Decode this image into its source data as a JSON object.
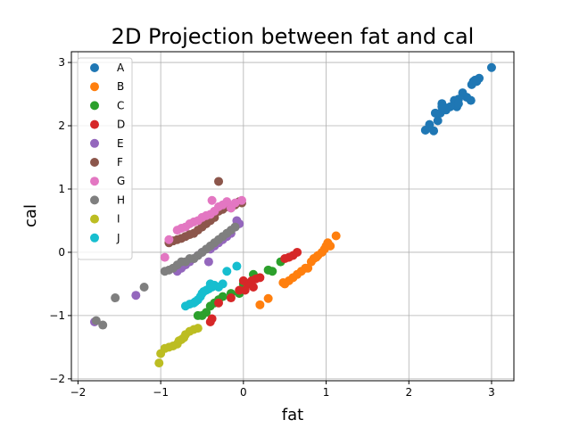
{
  "chart_data": {
    "type": "scatter",
    "title": "2D Projection between fat and cal",
    "xlabel": "fat",
    "ylabel": "cal",
    "xlim": [
      -2.08,
      3.27
    ],
    "ylim": [
      -2.03,
      3.17
    ],
    "xticks": [
      -2,
      -1,
      0,
      1,
      2,
      3
    ],
    "yticks": [
      -2,
      -1,
      0,
      1,
      2,
      3
    ],
    "grid": true,
    "legend_position": "top-left",
    "series": [
      {
        "name": "A",
        "color": "#1f77b4",
        "x": [
          3.0,
          2.85,
          2.8,
          2.78,
          2.76,
          2.82,
          2.75,
          2.7,
          2.65,
          2.6,
          2.58,
          2.55,
          2.5,
          2.45,
          2.42,
          2.4,
          2.38,
          2.35,
          2.32,
          2.3,
          2.25,
          2.2,
          2.4,
          2.6
        ],
        "y": [
          2.92,
          2.75,
          2.72,
          2.7,
          2.65,
          2.7,
          2.4,
          2.45,
          2.52,
          2.42,
          2.3,
          2.4,
          2.3,
          2.25,
          2.3,
          2.35,
          2.2,
          2.08,
          2.2,
          1.92,
          2.02,
          1.93,
          2.3,
          2.35
        ]
      },
      {
        "name": "B",
        "color": "#ff7f0e",
        "x": [
          1.12,
          1.05,
          1.02,
          0.98,
          0.95,
          0.9,
          0.85,
          0.82,
          0.78,
          0.75,
          0.65,
          0.6,
          0.55,
          0.5,
          0.48,
          0.3,
          0.2,
          1.0,
          0.88,
          0.7
        ],
        "y": [
          0.26,
          0.1,
          0.15,
          0.05,
          0.0,
          -0.05,
          -0.1,
          -0.15,
          -0.25,
          -0.25,
          -0.35,
          -0.4,
          -0.45,
          -0.5,
          -0.48,
          -0.73,
          -0.83,
          0.1,
          -0.08,
          -0.3
        ]
      },
      {
        "name": "C",
        "color": "#2ca02c",
        "x": [
          0.45,
          0.35,
          0.12,
          0.0,
          -0.05,
          -0.15,
          -0.25,
          -0.35,
          -0.4,
          -0.45,
          -0.5,
          -0.55,
          0.3,
          -0.3
        ],
        "y": [
          -0.15,
          -0.3,
          -0.35,
          -0.5,
          -0.65,
          -0.65,
          -0.7,
          -0.8,
          -0.85,
          -0.95,
          -1.0,
          -1.0,
          -0.28,
          -0.75
        ]
      },
      {
        "name": "D",
        "color": "#d62728",
        "x": [
          0.65,
          0.6,
          0.55,
          0.5,
          0.2,
          0.15,
          0.1,
          0.05,
          0.0,
          -0.05,
          -0.15,
          -0.3,
          -0.38,
          -0.4,
          0.12,
          0.02
        ],
        "y": [
          0.0,
          -0.05,
          -0.08,
          -0.1,
          -0.4,
          -0.42,
          -0.45,
          -0.5,
          -0.45,
          -0.6,
          -0.72,
          -0.8,
          -1.05,
          -1.1,
          -0.55,
          -0.6
        ]
      },
      {
        "name": "E",
        "color": "#9467bd",
        "x": [
          -0.05,
          -0.08,
          -0.1,
          -0.15,
          -0.2,
          -0.25,
          -0.3,
          -0.35,
          -0.4,
          -0.5,
          -0.55,
          -0.6,
          -0.65,
          -0.7,
          -0.75,
          -0.8,
          -1.3,
          -1.8,
          -0.42
        ],
        "y": [
          0.45,
          0.5,
          0.4,
          0.3,
          0.25,
          0.2,
          0.15,
          0.1,
          0.05,
          0.0,
          -0.05,
          -0.1,
          -0.15,
          -0.2,
          -0.25,
          -0.3,
          -0.68,
          -1.1,
          -0.15
        ]
      },
      {
        "name": "F",
        "color": "#8c564b",
        "x": [
          -0.3,
          -0.02,
          -0.05,
          -0.1,
          -0.15,
          -0.2,
          -0.25,
          -0.3,
          -0.35,
          -0.4,
          -0.45,
          -0.5,
          -0.55,
          -0.6,
          -0.65,
          -0.7,
          -0.75,
          -0.8,
          -0.85,
          -0.9
        ],
        "y": [
          1.12,
          0.78,
          0.8,
          0.75,
          0.7,
          0.72,
          0.68,
          0.65,
          0.55,
          0.5,
          0.45,
          0.4,
          0.35,
          0.3,
          0.28,
          0.25,
          0.22,
          0.2,
          0.18,
          0.15
        ]
      },
      {
        "name": "G",
        "color": "#e377c2",
        "x": [
          -0.02,
          -0.1,
          -0.15,
          -0.2,
          -0.25,
          -0.3,
          -0.35,
          -0.4,
          -0.45,
          -0.5,
          -0.55,
          -0.6,
          -0.65,
          -0.7,
          -0.75,
          -0.8,
          -0.9,
          -0.95,
          -0.38
        ],
        "y": [
          0.82,
          0.78,
          0.7,
          0.8,
          0.75,
          0.72,
          0.65,
          0.6,
          0.58,
          0.55,
          0.5,
          0.48,
          0.45,
          0.4,
          0.38,
          0.35,
          0.2,
          -0.08,
          0.82
        ]
      },
      {
        "name": "H",
        "color": "#7f7f7f",
        "x": [
          -0.1,
          -0.15,
          -0.2,
          -0.25,
          -0.3,
          -0.35,
          -0.4,
          -0.45,
          -0.5,
          -0.55,
          -0.6,
          -0.65,
          -0.7,
          -0.75,
          -0.8,
          -0.85,
          -0.9,
          -0.95,
          -1.2,
          -1.55,
          -1.7,
          -1.78
        ],
        "y": [
          0.4,
          0.35,
          0.3,
          0.25,
          0.2,
          0.15,
          0.1,
          0.05,
          0.0,
          -0.05,
          -0.1,
          -0.1,
          -0.15,
          -0.15,
          -0.2,
          -0.25,
          -0.28,
          -0.3,
          -0.55,
          -0.72,
          -1.15,
          -1.08
        ]
      },
      {
        "name": "I",
        "color": "#bcbd22",
        "x": [
          -0.55,
          -0.6,
          -0.65,
          -0.7,
          -0.72,
          -0.75,
          -0.78,
          -0.8,
          -0.85,
          -0.9,
          -0.95,
          -1.0,
          -1.02
        ],
        "y": [
          -1.2,
          -1.22,
          -1.25,
          -1.3,
          -1.35,
          -1.38,
          -1.4,
          -1.45,
          -1.48,
          -1.5,
          -1.52,
          -1.6,
          -1.75
        ]
      },
      {
        "name": "J",
        "color": "#17becf",
        "x": [
          -0.08,
          -0.2,
          -0.25,
          -0.3,
          -0.35,
          -0.38,
          -0.4,
          -0.42,
          -0.45,
          -0.48,
          -0.5,
          -0.52,
          -0.55,
          -0.58,
          -0.6,
          -0.65,
          -0.7
        ],
        "y": [
          -0.22,
          -0.3,
          -0.5,
          -0.55,
          -0.52,
          -0.55,
          -0.5,
          -0.58,
          -0.6,
          -0.62,
          -0.65,
          -0.7,
          -0.75,
          -0.78,
          -0.8,
          -0.82,
          -0.85
        ]
      }
    ]
  }
}
